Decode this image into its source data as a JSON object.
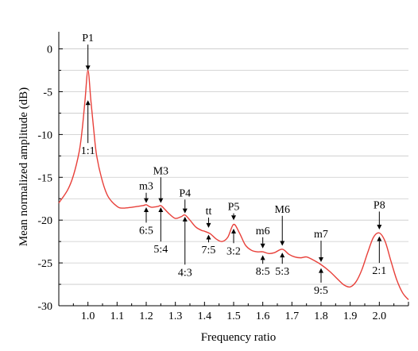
{
  "chart_data": {
    "type": "line",
    "xlabel": "Frequency ratio",
    "ylabel": "Mean normalized amplitude (dB)",
    "xlim": [
      0.9,
      2.1
    ],
    "ylim": [
      -30,
      2
    ],
    "xticks": [
      "1.0",
      "1.1",
      "1.2",
      "1.3",
      "1.4",
      "1.5",
      "1.6",
      "1.7",
      "1.8",
      "1.9",
      "2.0"
    ],
    "yticks": [
      "0",
      "-5",
      "-10",
      "-15",
      "-20",
      "-25",
      "-30"
    ],
    "grid": "horizontal",
    "line_color": "#e8403a",
    "series": [
      {
        "x": [
          0.9,
          0.93,
          0.95,
          0.97,
          0.98,
          0.99,
          1.0,
          1.01,
          1.02,
          1.03,
          1.05,
          1.07,
          1.1,
          1.12,
          1.15,
          1.17,
          1.19,
          1.2,
          1.21,
          1.22,
          1.24,
          1.25,
          1.26,
          1.28,
          1.3,
          1.32,
          1.333,
          1.35,
          1.37,
          1.39,
          1.4,
          1.42,
          1.44,
          1.46,
          1.48,
          1.5,
          1.52,
          1.54,
          1.56,
          1.58,
          1.6,
          1.62,
          1.64,
          1.667,
          1.69,
          1.71,
          1.73,
          1.75,
          1.77,
          1.8,
          1.83,
          1.86,
          1.88,
          1.9,
          1.92,
          1.94,
          1.96,
          1.98,
          2.0,
          2.02,
          2.04,
          2.06,
          2.08,
          2.1
        ],
        "y": [
          -18.0,
          -16.5,
          -14.8,
          -12.0,
          -9.5,
          -6.0,
          -2.5,
          -6.0,
          -9.5,
          -12.5,
          -15.5,
          -17.3,
          -18.4,
          -18.6,
          -18.5,
          -18.4,
          -18.3,
          -18.2,
          -18.4,
          -18.5,
          -18.4,
          -18.3,
          -18.6,
          -19.3,
          -19.8,
          -19.6,
          -19.4,
          -20.0,
          -20.8,
          -21.2,
          -21.3,
          -21.6,
          -22.2,
          -22.5,
          -22.0,
          -20.5,
          -21.5,
          -22.9,
          -23.5,
          -23.7,
          -23.7,
          -23.9,
          -23.8,
          -23.4,
          -24.0,
          -24.3,
          -24.4,
          -24.3,
          -24.6,
          -25.2,
          -26.0,
          -27.0,
          -27.6,
          -27.8,
          -27.2,
          -25.8,
          -23.8,
          -22.0,
          -21.5,
          -22.5,
          -24.8,
          -27.0,
          -28.5,
          -29.3
        ]
      }
    ],
    "annotations": [
      {
        "label": "P1",
        "x": 1.0,
        "y_end": -2.5,
        "side": "above",
        "y_tail": 0.5
      },
      {
        "label": "1:1",
        "x": 1.0,
        "y_end": -6.0,
        "side": "below",
        "y_tail": -11.0
      },
      {
        "label": "m3",
        "x": 1.2,
        "y_end": -18.0,
        "side": "above",
        "y_tail": -16.8
      },
      {
        "label": "6:5",
        "x": 1.2,
        "y_end": -18.5,
        "side": "below",
        "y_tail": -20.3
      },
      {
        "label": "M3",
        "x": 1.25,
        "y_end": -18.0,
        "side": "above",
        "y_tail": -15.0
      },
      {
        "label": "5:4",
        "x": 1.25,
        "y_end": -18.5,
        "side": "below",
        "y_tail": -22.5
      },
      {
        "label": "P4",
        "x": 1.333,
        "y_end": -19.2,
        "side": "above",
        "y_tail": -17.6
      },
      {
        "label": "4:3",
        "x": 1.333,
        "y_end": -19.6,
        "side": "below",
        "y_tail": -25.2
      },
      {
        "label": "tt",
        "x": 1.414,
        "y_end": -20.9,
        "side": "above",
        "y_tail": -19.7
      },
      {
        "label": "7:5",
        "x": 1.414,
        "y_end": -21.7,
        "side": "below",
        "y_tail": -22.6
      },
      {
        "label": "P5",
        "x": 1.5,
        "y_end": -20.0,
        "side": "above",
        "y_tail": -19.2
      },
      {
        "label": "3:2",
        "x": 1.5,
        "y_end": -21.0,
        "side": "below",
        "y_tail": -22.7
      },
      {
        "label": "m6",
        "x": 1.6,
        "y_end": -23.3,
        "side": "above",
        "y_tail": -22.0
      },
      {
        "label": "8:5",
        "x": 1.6,
        "y_end": -24.1,
        "side": "below",
        "y_tail": -25.1
      },
      {
        "label": "M6",
        "x": 1.667,
        "y_end": -23.0,
        "side": "above",
        "y_tail": -19.5
      },
      {
        "label": "5:3",
        "x": 1.667,
        "y_end": -23.8,
        "side": "below",
        "y_tail": -25.1
      },
      {
        "label": "m7",
        "x": 1.8,
        "y_end": -24.9,
        "side": "above",
        "y_tail": -22.4
      },
      {
        "label": "9:5",
        "x": 1.8,
        "y_end": -25.6,
        "side": "below",
        "y_tail": -27.3
      },
      {
        "label": "P8",
        "x": 2.0,
        "y_end": -21.1,
        "side": "above",
        "y_tail": -19.0
      },
      {
        "label": "2:1",
        "x": 2.0,
        "y_end": -21.9,
        "side": "below",
        "y_tail": -25.0
      }
    ]
  }
}
